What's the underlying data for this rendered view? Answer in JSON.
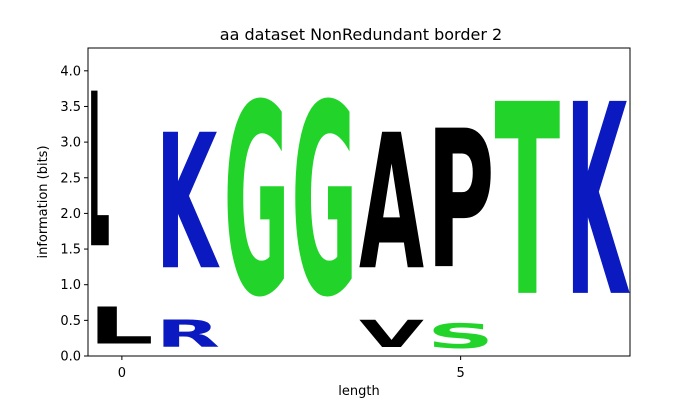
{
  "chart_data": {
    "type": "sequence-logo",
    "title": "aa dataset NonRedundant border 2",
    "xlabel": "length",
    "ylabel": "information (bits)",
    "xlim": [
      -0.5,
      7.5
    ],
    "ylim": [
      0,
      4.32
    ],
    "xticks": [
      0,
      5
    ],
    "yticks": [
      0.0,
      0.5,
      1.0,
      1.5,
      2.0,
      2.5,
      3.0,
      3.5,
      4.0
    ],
    "yticklabels": [
      "0.0",
      "0.5",
      "1.0",
      "1.5",
      "2.0",
      "2.5",
      "3.0",
      "3.5",
      "4.0"
    ],
    "grid": false,
    "colors": {
      "black": "#000000",
      "blue": "#0a1ac0",
      "green": "#22d42a"
    },
    "positions": [
      {
        "position": 0,
        "letters": [
          {
            "letter": "L",
            "bottom": 0.84,
            "height": 3.48,
            "color": "black"
          }
        ]
      },
      {
        "position": 0,
        "letters": [
          {
            "letter": "L",
            "bottom": 0.0,
            "height": 0.84,
            "color": "black"
          }
        ]
      },
      {
        "position": 1,
        "letters": [
          {
            "letter": "R",
            "bottom": 0.0,
            "height": 0.62,
            "color": "blue"
          },
          {
            "letter": "K",
            "bottom": 0.62,
            "height": 3.05,
            "color": "blue"
          }
        ]
      },
      {
        "position": 2,
        "letters": [
          {
            "letter": "G",
            "bottom": 0.0,
            "height": 4.32,
            "color": "green"
          }
        ]
      },
      {
        "position": 3,
        "letters": [
          {
            "letter": "G",
            "bottom": 0.0,
            "height": 4.32,
            "color": "green"
          }
        ]
      },
      {
        "position": 4,
        "letters": [
          {
            "letter": "V",
            "bottom": 0.0,
            "height": 0.62,
            "color": "black"
          },
          {
            "letter": "A",
            "bottom": 0.62,
            "height": 3.05,
            "color": "black"
          }
        ]
      },
      {
        "position": 5,
        "letters": [
          {
            "letter": "S",
            "bottom": 0.0,
            "height": 0.55,
            "color": "green"
          },
          {
            "letter": "P",
            "bottom": 0.62,
            "height": 3.12,
            "color": "black"
          }
        ]
      },
      {
        "position": 6,
        "letters": [
          {
            "letter": "T",
            "bottom": 0.0,
            "height": 4.32,
            "color": "green"
          }
        ]
      },
      {
        "position": 7,
        "letters": [
          {
            "letter": "K",
            "bottom": 0.0,
            "height": 4.32,
            "color": "blue"
          }
        ]
      }
    ]
  }
}
